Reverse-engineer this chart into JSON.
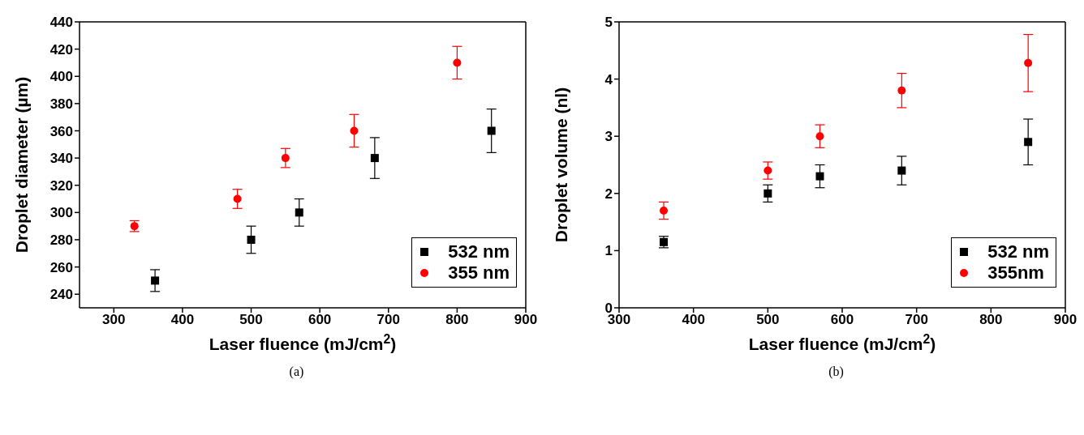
{
  "chart_data": [
    {
      "type": "scatter",
      "xlabel": "Laser fluence (mJ/cm$^{2}$)",
      "ylabel": "Droplet diameter (µm)",
      "annotations": [
        "(a)"
      ],
      "xlim": [
        250,
        900
      ],
      "xticks": [
        300,
        400,
        500,
        600,
        700,
        800,
        900
      ],
      "ylim": [
        230,
        440
      ],
      "yticks": [
        240,
        260,
        280,
        300,
        320,
        340,
        360,
        380,
        400,
        420,
        440
      ],
      "grid": false,
      "legend": "bottom right",
      "series": [
        {
          "name": "532 nm",
          "color": "#000000",
          "marker": "square",
          "x": [
            360,
            500,
            570,
            680,
            850
          ],
          "values": [
            250,
            280,
            300,
            340,
            360
          ],
          "errors": [
            8,
            10,
            10,
            15,
            16
          ]
        },
        {
          "name": "355 nm",
          "color": "#ff0000",
          "marker": "circle",
          "x": [
            330,
            480,
            550,
            650,
            800
          ],
          "values": [
            290,
            310,
            340,
            360,
            410
          ],
          "errors": [
            4,
            7,
            7,
            12,
            12
          ]
        }
      ]
    },
    {
      "type": "scatter",
      "xlabel": "Laser fluence (mJ/cm$^{2}$)",
      "ylabel": "Droplet volume (nl)",
      "annotations": [
        "(b)"
      ],
      "xlim": [
        300,
        900
      ],
      "xticks": [
        300,
        400,
        500,
        600,
        700,
        800,
        900
      ],
      "ylim": [
        0,
        5
      ],
      "yticks": [
        0,
        1,
        2,
        3,
        4,
        5
      ],
      "grid": false,
      "legend": "bottom right",
      "series": [
        {
          "name": "532 nm",
          "color": "#000000",
          "marker": "square",
          "x": [
            360,
            500,
            570,
            680,
            850
          ],
          "values": [
            1.15,
            2.0,
            2.3,
            2.4,
            2.9
          ],
          "errors": [
            0.1,
            0.15,
            0.2,
            0.25,
            0.4
          ]
        },
        {
          "name": "355nm",
          "color": "#ff0000",
          "marker": "circle",
          "x": [
            360,
            500,
            570,
            680,
            850
          ],
          "values": [
            1.7,
            2.4,
            3.0,
            3.8,
            4.28
          ],
          "errors": [
            0.15,
            0.15,
            0.2,
            0.3,
            0.5
          ]
        }
      ]
    }
  ]
}
